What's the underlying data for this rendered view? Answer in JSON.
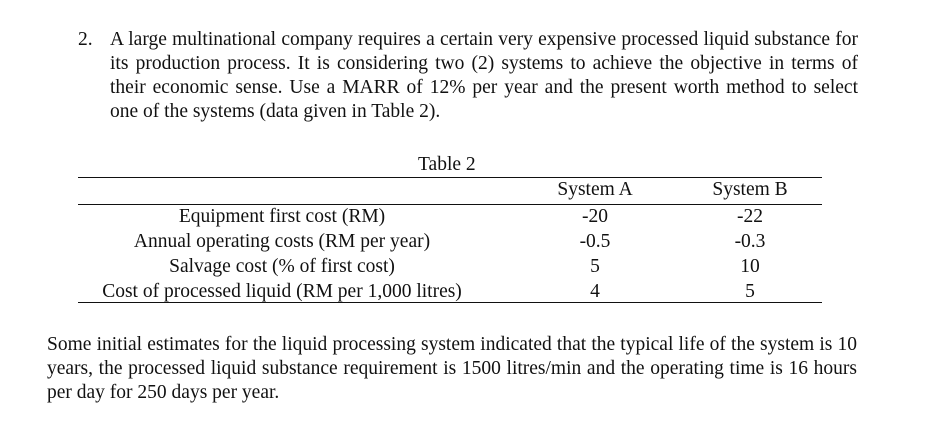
{
  "question": {
    "number": "2.",
    "text": "A large multinational company requires a certain very expensive processed liquid substance for its production process. It is considering two (2) systems to achieve the objective in terms of their economic sense. Use a MARR of 12% per year and the present worth method to select one of the systems (data given in Table 2)."
  },
  "table": {
    "caption": "Table 2",
    "headers": [
      "System A",
      "System B"
    ],
    "rows": [
      {
        "label": "Equipment first  cost (RM)",
        "a": "-20",
        "b": "-22"
      },
      {
        "label": "Annual operating costs (RM per year)",
        "a": "-0.5",
        "b": "-0.3"
      },
      {
        "label": "Salvage cost (% of first cost)",
        "a": "5",
        "b": "10"
      },
      {
        "label": "Cost of processed liquid (RM per 1,000 litres)",
        "a": "4",
        "b": "5"
      }
    ]
  },
  "footnote": "Some initial estimates for the liquid processing system indicated that the typical life of the system is 10 years, the processed liquid substance requirement is 1500 litres/min and the operating time is 16 hours per day for 250 days per year."
}
